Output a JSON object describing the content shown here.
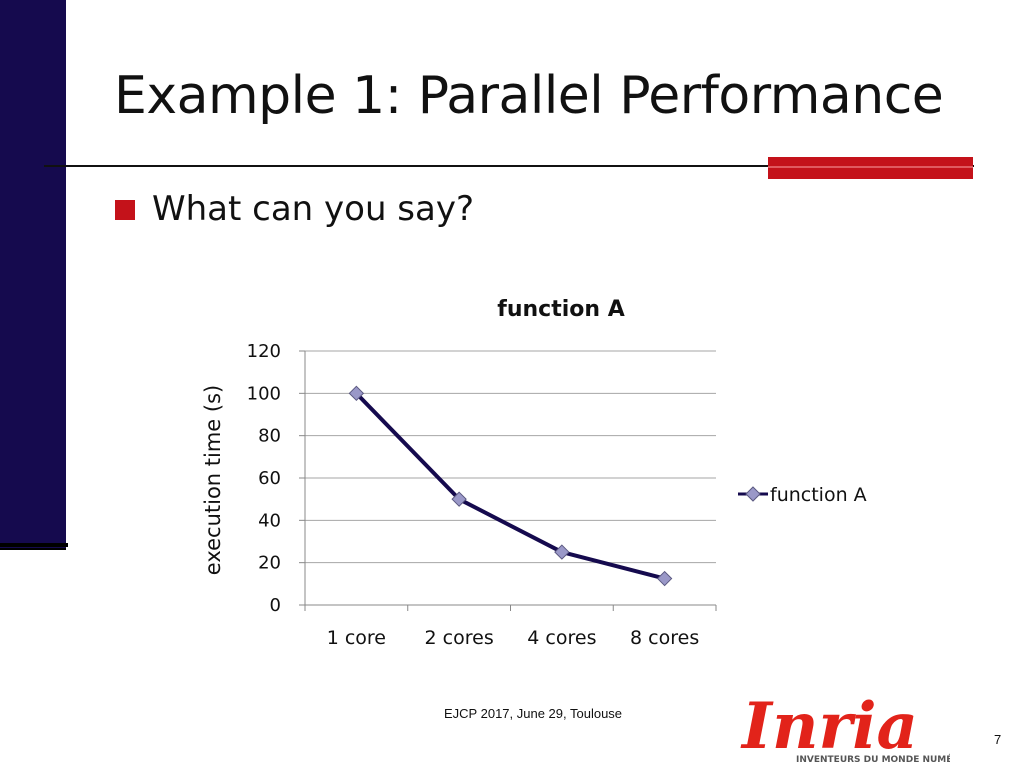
{
  "slide": {
    "title": "Example 1: Parallel Performance",
    "bullet": "What can you say?",
    "footer": "EJCP 2017, June 29, Toulouse",
    "page_number": "7",
    "logo_text": "Inria",
    "logo_tagline": "INVENTEURS DU MONDE NUMÉRIQUE"
  },
  "colors": {
    "sidebar": "#150a4e",
    "accent": "#c4121a",
    "series_line": "#150a4e",
    "marker_fill": "#9a98c8",
    "grid": "#a6a6a6"
  },
  "chart_data": {
    "type": "line",
    "title": "function A",
    "xlabel": "",
    "ylabel": "execution time (s)",
    "categories": [
      "1 core",
      "2 cores",
      "4 cores",
      "8 cores"
    ],
    "series": [
      {
        "name": "function A",
        "values": [
          100,
          50,
          25,
          12.5
        ]
      }
    ],
    "ylim": [
      0,
      120
    ],
    "yticks": [
      0,
      20,
      40,
      60,
      80,
      100,
      120
    ],
    "grid": true,
    "legend": "right",
    "marker": "diamond"
  }
}
